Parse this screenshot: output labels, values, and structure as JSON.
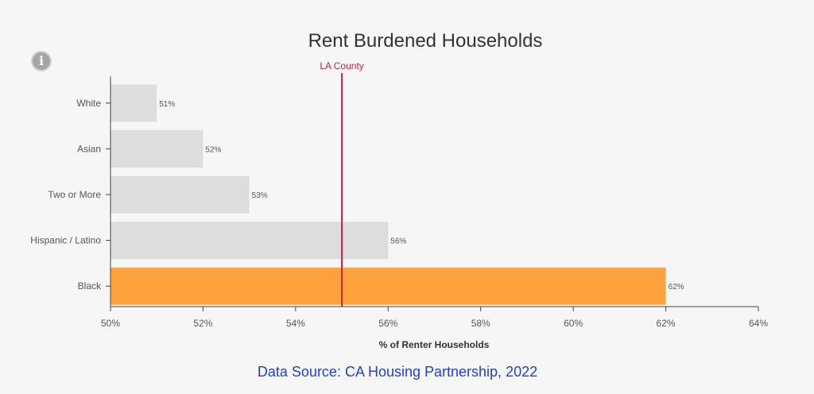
{
  "chart_data": {
    "type": "bar",
    "orientation": "horizontal",
    "title": "Rent Burdened Households",
    "categories": [
      "White",
      "Asian",
      "Two or More",
      "Hispanic / Latino",
      "Black"
    ],
    "values": [
      51,
      52,
      53,
      56,
      62
    ],
    "value_labels": [
      "51%",
      "52%",
      "53%",
      "56%",
      "62%"
    ],
    "highlight_category": "Black",
    "xlabel": "% of Renter Households",
    "ylabel": "",
    "xlim": [
      50,
      64
    ],
    "x_ticks": [
      50,
      52,
      54,
      56,
      58,
      60,
      62,
      64
    ],
    "x_tick_labels": [
      "50%",
      "52%",
      "54%",
      "56%",
      "58%",
      "60%",
      "62%",
      "64%"
    ],
    "reference_line": {
      "label": "LA County",
      "value": 55
    },
    "grid": false,
    "legend": "none",
    "colors": {
      "bar": "#dddddd",
      "highlight": "#ffa23b",
      "reference": "#d0203e"
    }
  },
  "source_text": "Data Source: CA Housing Partnership, 2022",
  "icons": {
    "info": "info-icon"
  },
  "info_glyph": "i"
}
